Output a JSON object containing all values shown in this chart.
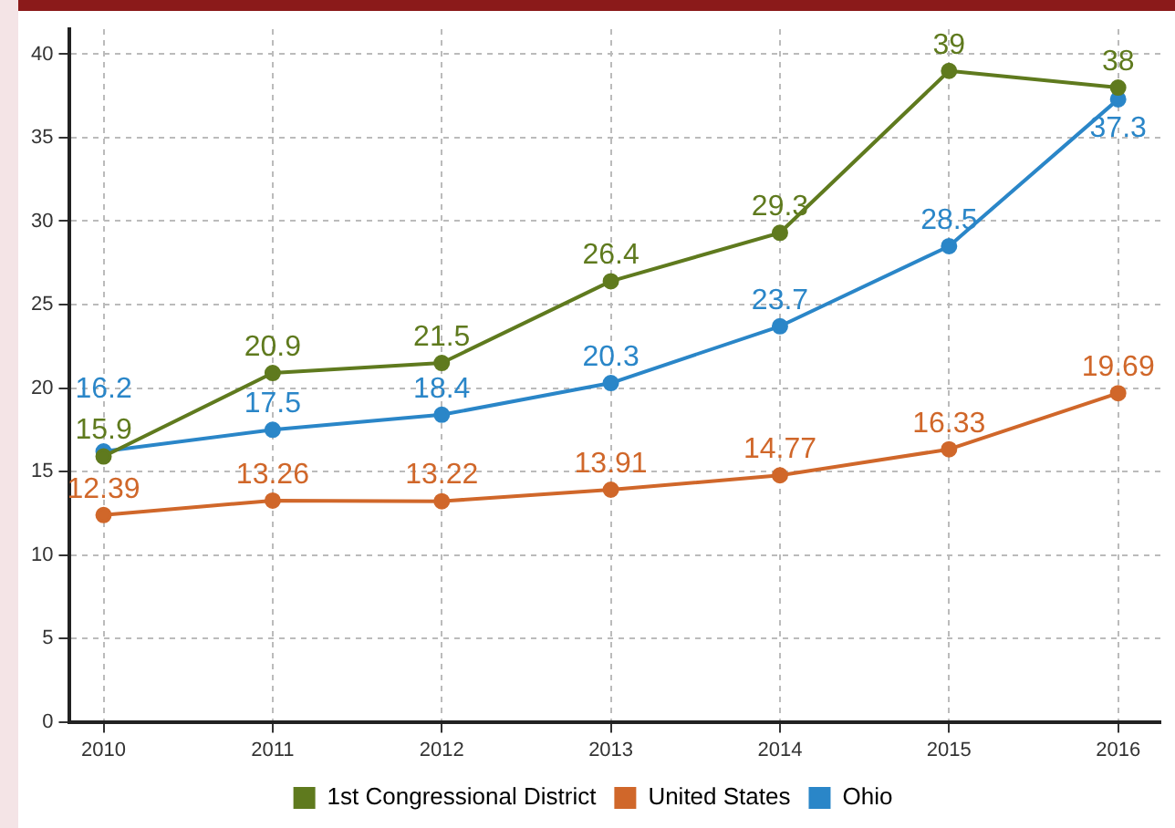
{
  "chart_data": {
    "type": "line",
    "x": [
      2010,
      2011,
      2012,
      2013,
      2014,
      2015,
      2016
    ],
    "series": [
      {
        "name": "1st Congressional District",
        "color": "#5f7a1e",
        "values": [
          15.9,
          20.9,
          21.5,
          26.4,
          29.3,
          39,
          38
        ]
      },
      {
        "name": "United States",
        "color": "#d0672a",
        "values": [
          12.39,
          13.26,
          13.22,
          13.91,
          14.77,
          16.33,
          19.69
        ]
      },
      {
        "name": "Ohio",
        "color": "#2a86c8",
        "values": [
          16.2,
          17.5,
          18.4,
          20.3,
          23.7,
          28.5,
          37.3
        ]
      }
    ],
    "xlim": [
      2009.8,
      2016.25
    ],
    "xticks": [
      2010,
      2011,
      2012,
      2013,
      2014,
      2015,
      2016
    ],
    "ylim": [
      0,
      41.5
    ],
    "yticks": [
      0,
      5,
      10,
      15,
      20,
      25,
      30,
      35,
      40
    ],
    "grid": true,
    "legend": "bottom",
    "marker": "circle",
    "line_style": "solid",
    "data_labels": true
  }
}
